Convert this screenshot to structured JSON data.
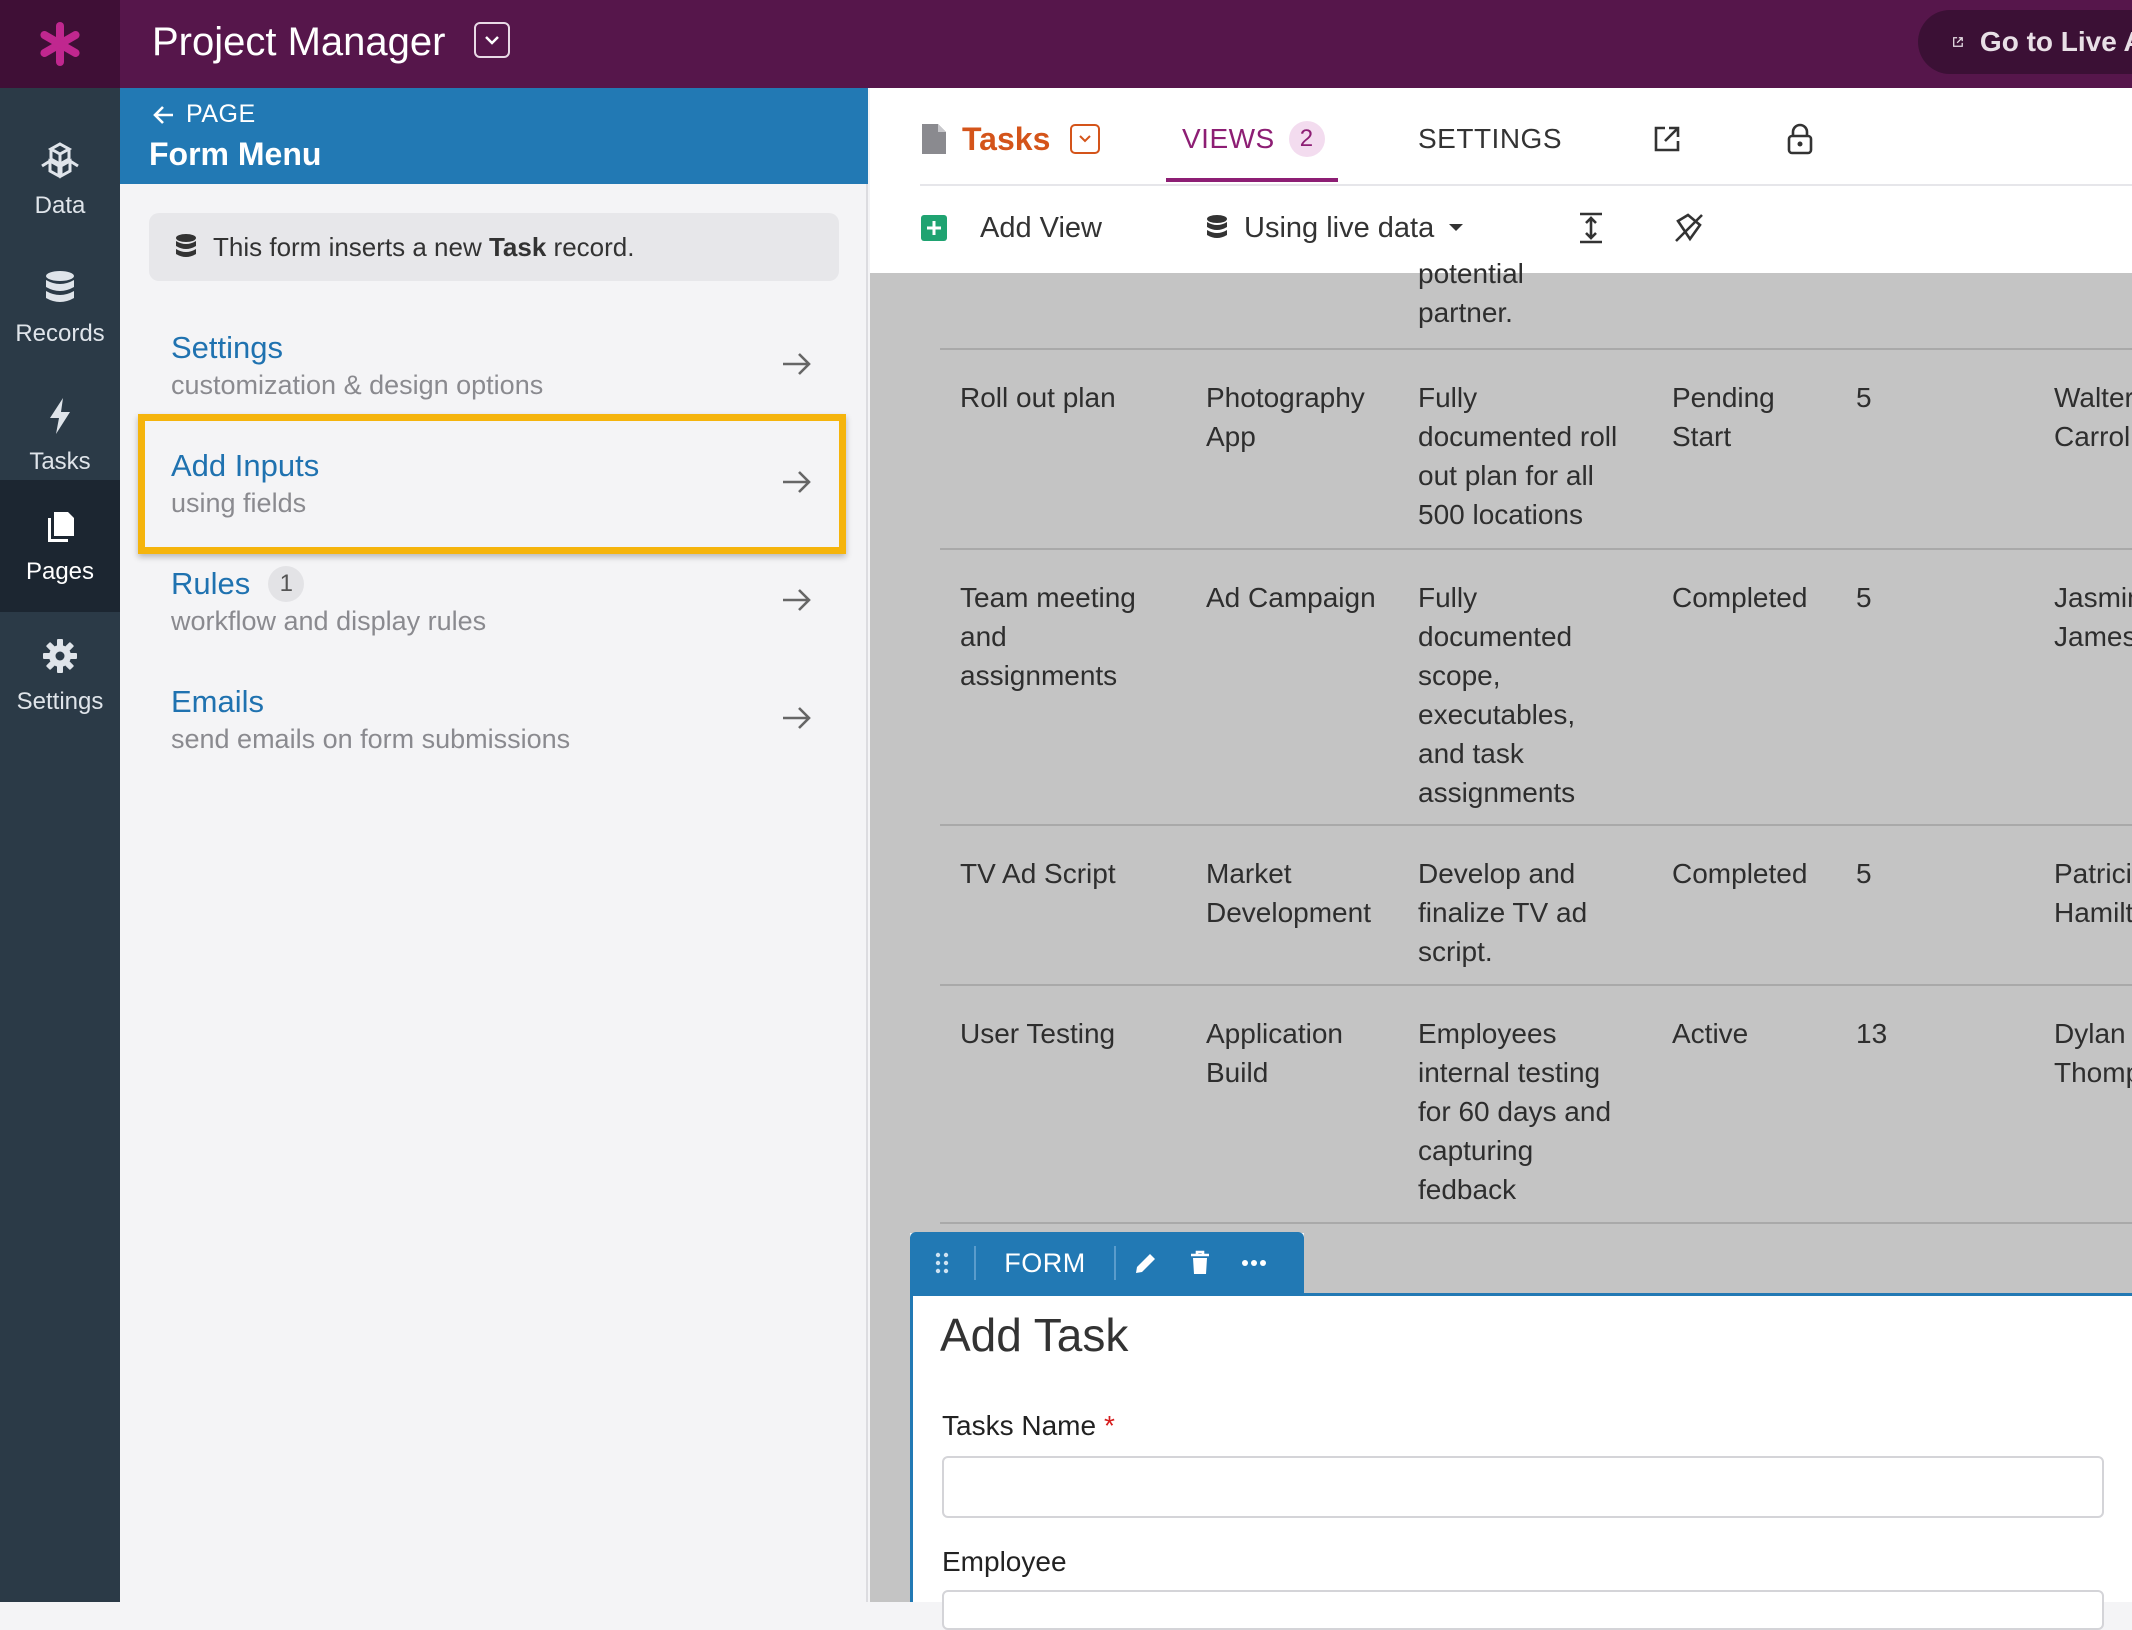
{
  "app": {
    "title": "Project Manager",
    "go_live_label": "Go to Live App",
    "brand_color": "#56164b"
  },
  "leftnav": {
    "items": [
      {
        "label": "Data",
        "icon": "cubes-icon"
      },
      {
        "label": "Records",
        "icon": "database-icon"
      },
      {
        "label": "Tasks",
        "icon": "bolt-icon"
      },
      {
        "label": "Pages",
        "icon": "pages-icon",
        "active": true
      },
      {
        "label": "Settings",
        "icon": "gear-icon"
      }
    ]
  },
  "panel": {
    "back_label": "PAGE",
    "title": "Form Menu",
    "info_prefix": "This form inserts a new ",
    "info_bold": "Task",
    "info_suffix": " record.",
    "menu": [
      {
        "title": "Settings",
        "subtitle": "customization & design options"
      },
      {
        "title": "Add Inputs",
        "subtitle": "using fields"
      },
      {
        "title": "Rules",
        "badge": "1",
        "subtitle": "workflow and display rules"
      },
      {
        "title": "Emails",
        "subtitle": "send emails on form submissions"
      }
    ]
  },
  "header": {
    "object_tab": "Tasks",
    "views_tab": "VIEWS",
    "views_count": "2",
    "settings_tab": "SETTINGS",
    "add_view": "Add View",
    "data_source": "Using live data"
  },
  "table": {
    "partial_top": [
      "potential",
      "partner."
    ],
    "rows": [
      {
        "task": [
          "Roll out plan"
        ],
        "project": [
          "Photography",
          "App"
        ],
        "description": [
          "Fully",
          "documented roll",
          "out plan for all",
          "500 locations"
        ],
        "status": [
          "Pending",
          "Start"
        ],
        "points": "5",
        "assignee": [
          "Walter",
          "Carroll"
        ]
      },
      {
        "task": [
          "Team meeting",
          "and",
          "assignments"
        ],
        "project": [
          "Ad Campaign"
        ],
        "description": [
          "Fully",
          "documented",
          "scope,",
          "executables,",
          "and task",
          "assignments"
        ],
        "status": [
          "Completed"
        ],
        "points": "5",
        "assignee": [
          "Jasmine",
          "James"
        ]
      },
      {
        "task": [
          "TV Ad Script"
        ],
        "project": [
          "Market",
          "Development"
        ],
        "description": [
          "Develop and",
          "finalize TV ad",
          "script."
        ],
        "status": [
          "Completed"
        ],
        "points": "5",
        "assignee": [
          "Patricia",
          "Hamilton"
        ]
      },
      {
        "task": [
          "User Testing"
        ],
        "project": [
          "Application",
          "Build"
        ],
        "description": [
          "Employees",
          "internal testing",
          "for 60 days and",
          "capturing",
          "fedback"
        ],
        "status": [
          "Active"
        ],
        "points": "13",
        "assignee": [
          "Dylan",
          "Thompson"
        ]
      }
    ]
  },
  "form": {
    "toolbar_label": "FORM",
    "title": "Add Task",
    "fields": [
      {
        "label": "Tasks Name",
        "required": true,
        "value": ""
      },
      {
        "label": "Employee",
        "required": false,
        "value": ""
      }
    ]
  }
}
